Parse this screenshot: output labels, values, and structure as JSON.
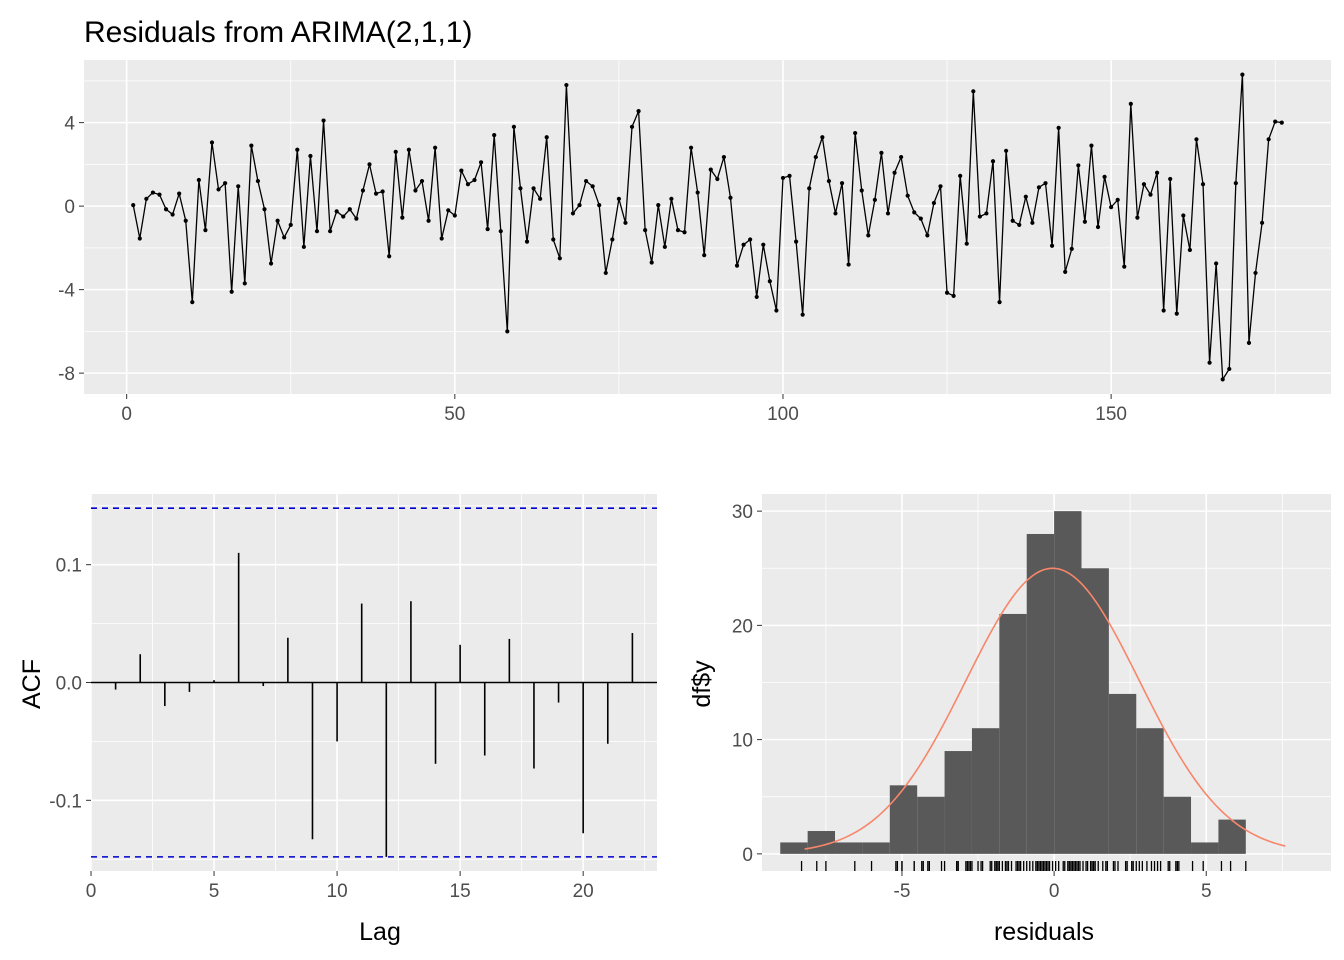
{
  "chart_data": [
    {
      "id": "residual-series",
      "type": "line",
      "title": "Residuals from ARIMA(2,1,1)",
      "xlabel": "",
      "ylabel": "",
      "xlim": [
        -6.5,
        183.5
      ],
      "ylim": [
        -9,
        7
      ],
      "x_ticks": [
        0,
        50,
        100,
        150
      ],
      "x_tick_labels": [
        "0",
        "50",
        "100",
        "150"
      ],
      "y_ticks": [
        -8,
        -4,
        0,
        4
      ],
      "y_tick_labels": [
        "-8",
        "-4",
        "0",
        "4"
      ],
      "series": [
        {
          "name": "residuals",
          "color": "#000000",
          "values": [
            0.05,
            -1.55,
            0.35,
            0.65,
            0.55,
            -0.15,
            -0.4,
            0.6,
            -0.7,
            -4.6,
            1.25,
            -1.15,
            3.05,
            0.8,
            1.1,
            -4.1,
            0.95,
            -3.7,
            2.9,
            1.2,
            -0.15,
            -2.75,
            -0.7,
            -1.5,
            -0.9,
            2.7,
            -1.95,
            2.4,
            -1.2,
            4.1,
            -1.2,
            -0.25,
            -0.5,
            -0.15,
            -0.6,
            0.75,
            2.0,
            0.6,
            0.7,
            -2.4,
            2.6,
            -0.55,
            2.7,
            0.75,
            1.2,
            -0.7,
            2.8,
            -1.55,
            -0.2,
            -0.45,
            1.7,
            1.05,
            1.25,
            2.1,
            -1.1,
            3.4,
            -1.2,
            -6.0,
            3.8,
            0.85,
            -1.7,
            0.85,
            0.35,
            3.3,
            -1.6,
            -2.5,
            5.8,
            -0.35,
            0.05,
            1.2,
            0.95,
            0.05,
            -3.2,
            -1.6,
            0.35,
            -0.8,
            3.8,
            4.55,
            -1.15,
            -2.7,
            0.05,
            -1.95,
            0.35,
            -1.15,
            -1.25,
            2.8,
            0.65,
            -2.35,
            1.75,
            1.3,
            2.35,
            0.4,
            -2.85,
            -1.85,
            -1.6,
            -4.35,
            -1.85,
            -3.6,
            -5.0,
            1.35,
            1.45,
            -1.7,
            -5.2,
            0.85,
            2.35,
            3.3,
            1.2,
            -0.35,
            1.1,
            -2.8,
            3.5,
            0.75,
            -1.4,
            0.3,
            2.55,
            -0.35,
            1.6,
            2.35,
            0.5,
            -0.3,
            -0.6,
            -1.4,
            0.15,
            0.95,
            -4.15,
            -4.3,
            1.45,
            -1.8,
            5.5,
            -0.5,
            -0.35,
            2.15,
            -4.6,
            2.65,
            -0.7,
            -0.9,
            0.45,
            -0.8,
            0.9,
            1.1,
            -1.9,
            3.75,
            -3.15,
            -2.05,
            1.95,
            -0.75,
            2.9,
            -1.0,
            1.4,
            -0.05,
            0.3,
            -2.9,
            4.9,
            -0.55,
            1.05,
            0.55,
            1.6,
            -5.0,
            1.3,
            -5.15,
            -0.45,
            -2.1,
            3.2,
            1.05,
            -7.5,
            -2.75,
            -8.3,
            -7.8,
            1.1,
            6.3,
            -6.55,
            -3.2,
            -0.8,
            3.2,
            4.05,
            4.0
          ]
        }
      ]
    },
    {
      "id": "acf-plot",
      "type": "bar",
      "title": "",
      "xlabel": "Lag",
      "ylabel": "ACF",
      "xlim": [
        0,
        23
      ],
      "ylim": [
        -0.16,
        0.16
      ],
      "x_ticks": [
        0,
        5,
        10,
        15,
        20
      ],
      "x_tick_labels": [
        "0",
        "5",
        "10",
        "15",
        "20"
      ],
      "y_ticks": [
        -0.1,
        0.0,
        0.1
      ],
      "y_tick_labels": [
        "-0.1",
        "0.0",
        "0.1"
      ],
      "categories": [
        1,
        2,
        3,
        4,
        5,
        6,
        7,
        8,
        9,
        10,
        11,
        12,
        13,
        14,
        15,
        16,
        17,
        18,
        19,
        20,
        21,
        22
      ],
      "values": [
        -0.006,
        0.024,
        -0.02,
        -0.008,
        0.002,
        0.11,
        -0.003,
        0.038,
        -0.133,
        -0.05,
        0.067,
        -0.148,
        0.069,
        -0.069,
        0.032,
        -0.062,
        0.037,
        -0.073,
        -0.017,
        -0.128,
        -0.052,
        0.042
      ],
      "ci": [
        -0.148,
        0.148
      ],
      "ci_color": "#0000cc"
    },
    {
      "id": "residual-histogram",
      "type": "bar",
      "title": "",
      "xlabel": "residuals",
      "ylabel": "df$y",
      "xlim": [
        -9.6,
        9.1
      ],
      "ylim": [
        -1.5,
        31.5
      ],
      "x_ticks": [
        -5,
        0,
        5
      ],
      "x_tick_labels": [
        "-5",
        "0",
        "5"
      ],
      "y_ticks": [
        0,
        10,
        20,
        30
      ],
      "y_tick_labels": [
        "0",
        "10",
        "20",
        "30"
      ],
      "bin_edges": [
        -9.0,
        -8.1,
        -7.2,
        -6.3,
        -5.4,
        -4.5,
        -3.6,
        -2.7,
        -1.8,
        -0.9,
        0.0,
        0.9,
        1.8,
        2.7,
        3.6,
        4.5,
        5.4,
        6.3
      ],
      "values": [
        1,
        2,
        1,
        1,
        6,
        5,
        9,
        11,
        21,
        28,
        30,
        25,
        14,
        11,
        5,
        1,
        3
      ],
      "bar_color": "#595959",
      "normal_curve": {
        "mean": -0.05,
        "sd": 2.85,
        "scale": 25.0,
        "range": [
          -8.2,
          7.6
        ],
        "color": "#f8866a"
      },
      "rug": [
        -8.3,
        -7.8,
        -7.5,
        -6.55,
        -6.0,
        -5.2,
        -5.15,
        -5.0,
        -5.0,
        -4.6,
        -4.6,
        -4.35,
        -4.3,
        -4.15,
        -4.1,
        -3.7,
        -3.6,
        -3.2,
        -3.2,
        -3.15,
        -2.9,
        -2.85,
        -2.8,
        -2.75,
        -2.7,
        -2.5,
        -2.4,
        -2.35,
        -2.1,
        -2.05,
        -1.95,
        -1.9,
        -1.85,
        -1.8,
        -1.7,
        -1.6,
        -1.55,
        -1.5,
        -1.4,
        -1.25,
        -1.2,
        -1.15,
        -1.1,
        -1.0,
        -0.9,
        -0.8,
        -0.7,
        -0.6,
        -0.55,
        -0.5,
        -0.45,
        -0.4,
        -0.35,
        -0.3,
        -0.25,
        -0.2,
        -0.15,
        -0.05,
        0.05,
        0.15,
        0.3,
        0.35,
        0.45,
        0.5,
        0.55,
        0.6,
        0.65,
        0.7,
        0.75,
        0.8,
        0.85,
        0.95,
        1.05,
        1.1,
        1.2,
        1.25,
        1.3,
        1.35,
        1.45,
        1.6,
        1.7,
        1.75,
        1.95,
        2.0,
        2.1,
        2.35,
        2.4,
        2.55,
        2.6,
        2.7,
        2.8,
        2.9,
        3.05,
        3.2,
        3.3,
        3.4,
        3.5,
        3.75,
        3.8,
        4.0,
        4.05,
        4.1,
        4.55,
        4.9,
        5.5,
        5.8,
        6.3
      ]
    }
  ]
}
